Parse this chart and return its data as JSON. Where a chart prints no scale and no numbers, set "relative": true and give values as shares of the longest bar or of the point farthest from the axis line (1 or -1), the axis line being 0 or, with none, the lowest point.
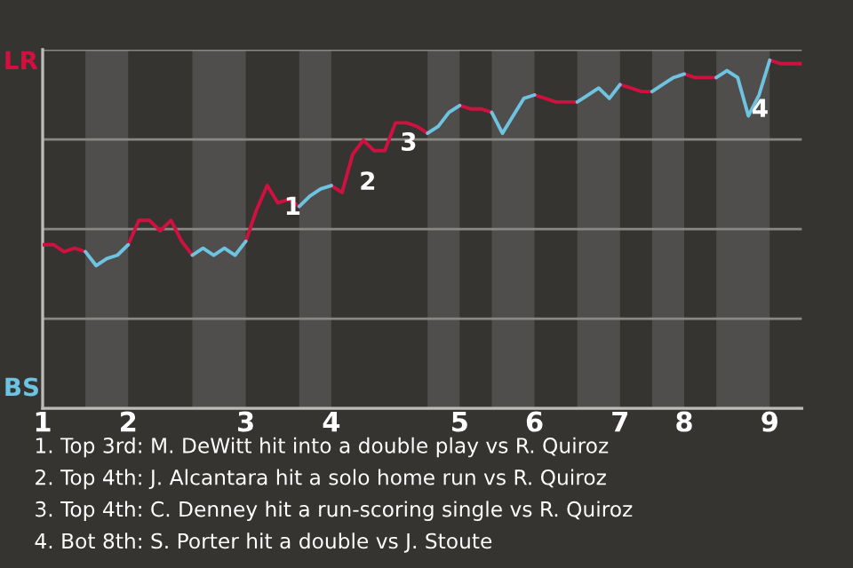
{
  "chart_data": {
    "type": "line",
    "relative": true,
    "categories": [
      "1",
      null,
      null,
      null,
      null,
      null,
      null,
      null,
      "2",
      null,
      null,
      null,
      null,
      null,
      null,
      null,
      null,
      null,
      null,
      "3",
      null,
      null,
      null,
      null,
      null,
      null,
      null,
      "4",
      null,
      null,
      null,
      null,
      null,
      null,
      null,
      null,
      null,
      null,
      null,
      "5",
      null,
      null,
      null,
      null,
      null,
      null,
      "6",
      null,
      null,
      null,
      null,
      null,
      null,
      null,
      "7",
      null,
      null,
      null,
      null,
      null,
      "8",
      null,
      null,
      null,
      null,
      null,
      null,
      null,
      "9",
      null,
      null,
      null
    ],
    "series": [
      {
        "color": "#d0103f",
        "values": [
          0.47,
          0.47,
          0.45,
          0.46,
          0.45,
          null,
          null,
          null,
          0.47,
          0.54,
          0.54,
          0.51,
          0.54,
          0.48,
          0.44,
          null,
          null,
          null,
          null,
          0.48,
          0.57,
          0.64,
          0.59,
          0.6,
          0.58,
          null,
          null,
          0.64,
          0.62,
          0.73,
          0.77,
          0.74,
          0.74,
          0.82,
          0.82,
          0.81,
          0.79,
          null,
          null,
          0.87,
          0.86,
          0.86,
          0.85,
          null,
          null,
          null,
          0.9,
          0.89,
          0.88,
          0.88,
          0.88,
          null,
          null,
          null,
          0.93,
          0.92,
          0.91,
          0.91,
          null,
          null,
          0.96,
          0.95,
          0.95,
          0.95,
          null,
          null,
          null,
          null,
          1,
          0.99,
          0.99,
          0.99
        ]
      },
      {
        "color": "#6ec3e0",
        "values": [
          null,
          null,
          null,
          null,
          0.45,
          0.41,
          0.43,
          0.44,
          0.47,
          null,
          null,
          null,
          null,
          null,
          0.44,
          0.46,
          0.44,
          0.46,
          0.44,
          0.48,
          null,
          null,
          null,
          null,
          0.58,
          0.61,
          0.63,
          0.64,
          null,
          null,
          null,
          null,
          null,
          null,
          null,
          null,
          0.79,
          0.81,
          0.85,
          0.87,
          null,
          null,
          0.85,
          0.79,
          0.84,
          0.89,
          0.9,
          null,
          null,
          null,
          0.88,
          0.9,
          0.92,
          0.89,
          0.93,
          null,
          null,
          0.91,
          0.93,
          0.95,
          0.96,
          null,
          null,
          0.95,
          0.97,
          0.95,
          0.84,
          0.9,
          1,
          null,
          null,
          null
        ]
      }
    ],
    "grid": "y",
    "annotations": [
      "LR",
      "BS",
      "1",
      "2",
      "3",
      "4",
      "1. Top 3rd: M. DeWitt hit into a double play vs R. Quiroz",
      "2. Top 4th: J. Alcantara hit a solo home run vs R. Quiroz",
      "3. Top 4th: C. Denney hit a run-scoring single vs R. Quiroz",
      "4. Bot 8th: S. Porter hit a double vs J. Stoute"
    ]
  }
}
